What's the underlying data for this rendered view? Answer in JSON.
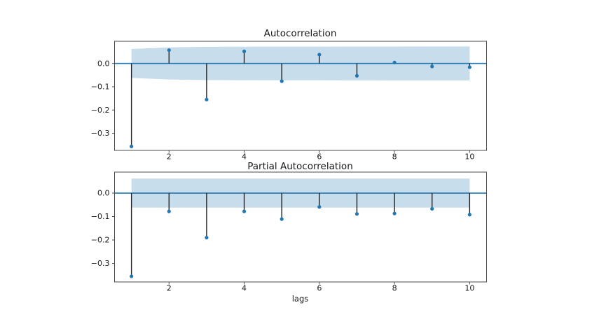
{
  "figure": {
    "background": "#ffffff"
  },
  "chart_data": [
    {
      "type": "stem",
      "title": "Autocorrelation",
      "xlabel": "",
      "ylabel": "",
      "x": [
        1,
        2,
        3,
        4,
        5,
        6,
        7,
        8,
        9,
        10
      ],
      "values": [
        -0.356,
        0.057,
        -0.155,
        0.052,
        -0.076,
        0.038,
        -0.053,
        0.004,
        -0.013,
        -0.016
      ],
      "conf_band_upper": [
        0.062,
        0.069,
        0.0715,
        0.072,
        0.0722,
        0.0724,
        0.0726,
        0.0728,
        0.0729,
        0.073
      ],
      "conf_band_lower": [
        -0.062,
        -0.069,
        -0.0715,
        -0.072,
        -0.0722,
        -0.0724,
        -0.0726,
        -0.0728,
        -0.0729,
        -0.073
      ],
      "zero_line": 0.0,
      "xticks": [
        2,
        4,
        6,
        8,
        10
      ],
      "xtick_labels": [
        "2",
        "4",
        "6",
        "8",
        "10"
      ],
      "yticks": [
        0.0,
        -0.1,
        -0.2,
        -0.3
      ],
      "ytick_labels": [
        "0.0",
        "−0.1",
        "−0.2",
        "−0.3"
      ],
      "xlim": [
        0.55,
        10.45
      ],
      "ylim": [
        -0.3733,
        0.0952
      ],
      "grid": false,
      "legend": null
    },
    {
      "type": "stem",
      "title": "Partial Autocorrelation",
      "xlabel": "lags",
      "ylabel": "",
      "x": [
        1,
        2,
        3,
        4,
        5,
        6,
        7,
        8,
        9,
        10
      ],
      "values": [
        -0.355,
        -0.078,
        -0.19,
        -0.078,
        -0.111,
        -0.059,
        -0.089,
        -0.087,
        -0.067,
        -0.092
      ],
      "conf_band_upper": [
        0.062,
        0.062,
        0.062,
        0.062,
        0.062,
        0.062,
        0.062,
        0.062,
        0.062,
        0.062
      ],
      "conf_band_lower": [
        -0.062,
        -0.062,
        -0.062,
        -0.062,
        -0.062,
        -0.062,
        -0.062,
        -0.062,
        -0.062,
        -0.062
      ],
      "zero_line": 0.0,
      "xticks": [
        2,
        4,
        6,
        8,
        10
      ],
      "xtick_labels": [
        "2",
        "4",
        "6",
        "8",
        "10"
      ],
      "yticks": [
        0.0,
        -0.1,
        -0.2,
        -0.3
      ],
      "ytick_labels": [
        "0.0",
        "−0.1",
        "−0.2",
        "−0.3"
      ],
      "xlim": [
        0.55,
        10.45
      ],
      "ylim": [
        -0.379,
        0.0896
      ],
      "grid": false,
      "legend": null
    }
  ],
  "colors": {
    "marker": "#1f77b4",
    "zero_line": "#1f77b4",
    "stem": "#1f1f1f",
    "band": "#1f77b4",
    "band_opacity": "0.25",
    "spine": "#4b4b4b",
    "text": "#1a1a1a"
  }
}
